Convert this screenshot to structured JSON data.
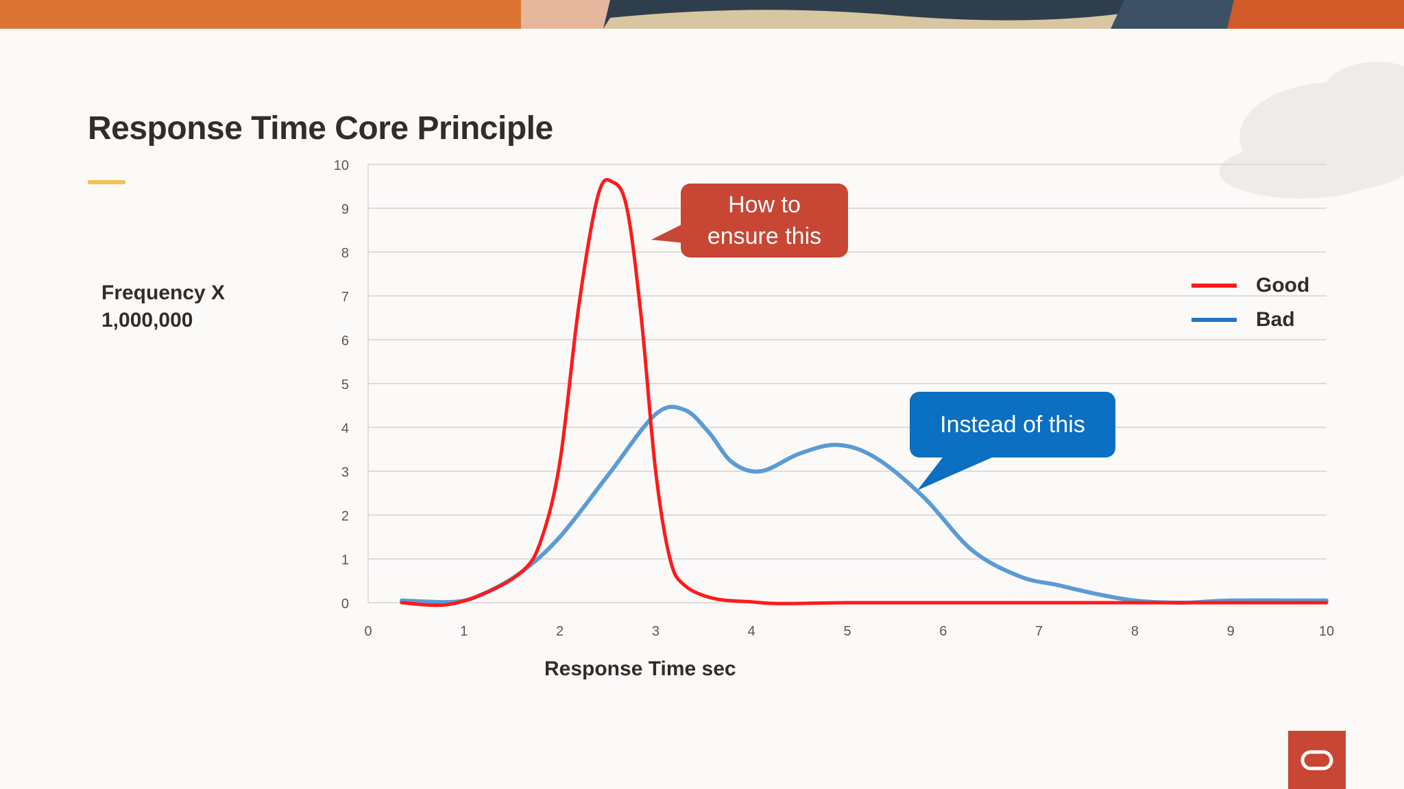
{
  "slide": {
    "title": "Response Time Core Principle",
    "ylabel_line1": "Frequency X",
    "ylabel_line2": "1,000,000",
    "xlabel": "Response Time sec",
    "accent_color": "#f2c24d",
    "brand_color": "#c74634"
  },
  "callouts": {
    "good_line1": "How to",
    "good_line2": "ensure this",
    "bad_text": "Instead of this"
  },
  "legend": {
    "good": "Good",
    "bad": "Bad"
  },
  "chart_data": {
    "type": "line",
    "xlabel": "Response Time sec",
    "ylabel": "Frequency X 1,000,000",
    "xlim": [
      0,
      10
    ],
    "ylim": [
      0,
      10
    ],
    "xticks": [
      0,
      1,
      2,
      3,
      4,
      5,
      6,
      7,
      8,
      9,
      10
    ],
    "yticks": [
      0,
      1,
      2,
      3,
      4,
      5,
      6,
      7,
      8,
      9,
      10
    ],
    "grid": true,
    "legend_position": "right",
    "series": [
      {
        "name": "Good",
        "color": "#ff1a1a",
        "x": [
          0.35,
          0.8,
          1.2,
          1.6,
          1.8,
          2.0,
          2.2,
          2.4,
          2.55,
          2.7,
          2.85,
          3.0,
          3.15,
          3.3,
          3.6,
          4.0,
          4.3,
          5.0,
          6.0,
          7.0,
          8.0,
          9.0,
          10.0
        ],
        "values": [
          0.0,
          -0.05,
          0.2,
          0.7,
          1.4,
          3.2,
          6.8,
          9.3,
          9.6,
          9.0,
          6.5,
          3.0,
          1.0,
          0.4,
          0.1,
          0.02,
          -0.02,
          0.0,
          0.0,
          0.0,
          0.0,
          0.0,
          0.0
        ]
      },
      {
        "name": "Bad",
        "color": "#5b9bd5",
        "x": [
          0.35,
          0.9,
          1.2,
          1.6,
          2.0,
          2.5,
          3.0,
          3.3,
          3.55,
          3.8,
          4.1,
          4.5,
          4.9,
          5.3,
          5.8,
          6.3,
          6.8,
          7.2,
          7.6,
          8.0,
          8.5,
          9.0,
          10.0
        ],
        "values": [
          0.05,
          0.02,
          0.2,
          0.7,
          1.5,
          2.9,
          4.3,
          4.4,
          3.9,
          3.2,
          3.0,
          3.4,
          3.6,
          3.3,
          2.4,
          1.2,
          0.6,
          0.4,
          0.2,
          0.05,
          0.0,
          0.05,
          0.05
        ]
      }
    ]
  }
}
